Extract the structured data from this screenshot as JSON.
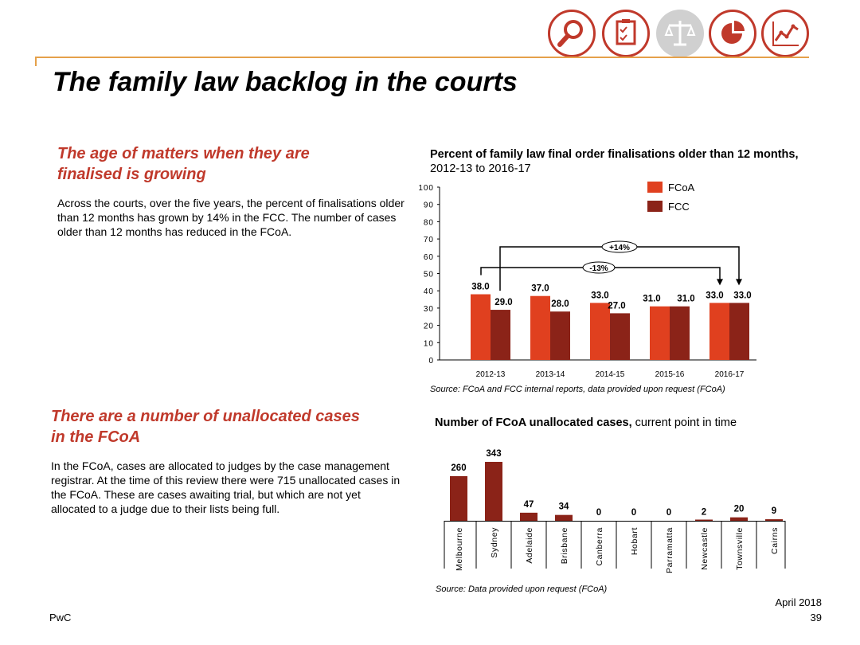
{
  "header": {
    "icons": [
      "magnifier-icon",
      "clipboard-icon",
      "scales-icon",
      "pie-chart-icon",
      "line-chart-icon"
    ],
    "title": "The family law backlog in the courts"
  },
  "left": {
    "section1": {
      "heading": "The age of matters when they are finalised is growing",
      "body": "Across the courts, over the five years, the percent of finalisations older than 12 months has grown by 14% in the FCC. The number of cases older than 12 months has reduced in the FCoA."
    },
    "section2": {
      "heading": "There are a number of unallocated cases in the FCoA",
      "body": "In the FCoA, cases are allocated to judges by the case management registrar. At the time of this review there were 715 unallocated cases in the FCoA. These are cases awaiting trial, but which are not yet allocated to a judge due to their lists being full."
    }
  },
  "chart1": {
    "title_bold": "Percent of family law final order finalisations older than 12 months,",
    "title_rest": " 2012-13 to 2016-17",
    "source": "Source: FCoA and FCC internal reports, data provided upon request (FCoA)"
  },
  "chart2": {
    "title_bold": "Number of FCoA unallocated cases,",
    "title_rest": " current point in time",
    "source": "Source: Data provided upon request (FCoA)"
  },
  "footer": {
    "company": "PwC",
    "date": "April 2018",
    "page": "39"
  },
  "colors": {
    "fcoa": "#e0401f",
    "fcc": "#8b2318",
    "accent": "#c0392b",
    "rule": "#e5a14a"
  },
  "chart_data": [
    {
      "type": "bar",
      "categories": [
        "2012-13",
        "2013-14",
        "2014-15",
        "2015-16",
        "2016-17"
      ],
      "series": [
        {
          "name": "FCoA",
          "values": [
            38.0,
            37.0,
            33.0,
            31.0,
            33.0
          ]
        },
        {
          "name": "FCC",
          "values": [
            29.0,
            28.0,
            27.0,
            31.0,
            33.0
          ]
        }
      ],
      "data_labels": {
        "FCoA": [
          "38.0",
          "37.0",
          "33.0",
          "31.0",
          "33.0"
        ],
        "FCC": [
          "29.0",
          "28.0",
          "27.0",
          "31.0",
          "33.0"
        ]
      },
      "ylim": [
        0,
        100
      ],
      "yticks": [
        "0",
        "10",
        "20",
        "30",
        "40",
        "50",
        "60",
        "70",
        "80",
        "90",
        "100"
      ],
      "legend": "top-right",
      "annotations": [
        "+14%",
        "-13%"
      ],
      "grid": false
    },
    {
      "type": "bar",
      "categories": [
        "Melbourne",
        "Sydney",
        "Adelaide",
        "Brisbane",
        "Canberra",
        "Hobart",
        "Parramatta",
        "Newcastle",
        "Townsville",
        "Cairns"
      ],
      "values": [
        260,
        343,
        47,
        34,
        0,
        0,
        0,
        2,
        20,
        9
      ],
      "data_labels": [
        "260",
        "343",
        "47",
        "34",
        "0",
        "0",
        "0",
        "2",
        "20",
        "9"
      ],
      "grid": false
    }
  ]
}
